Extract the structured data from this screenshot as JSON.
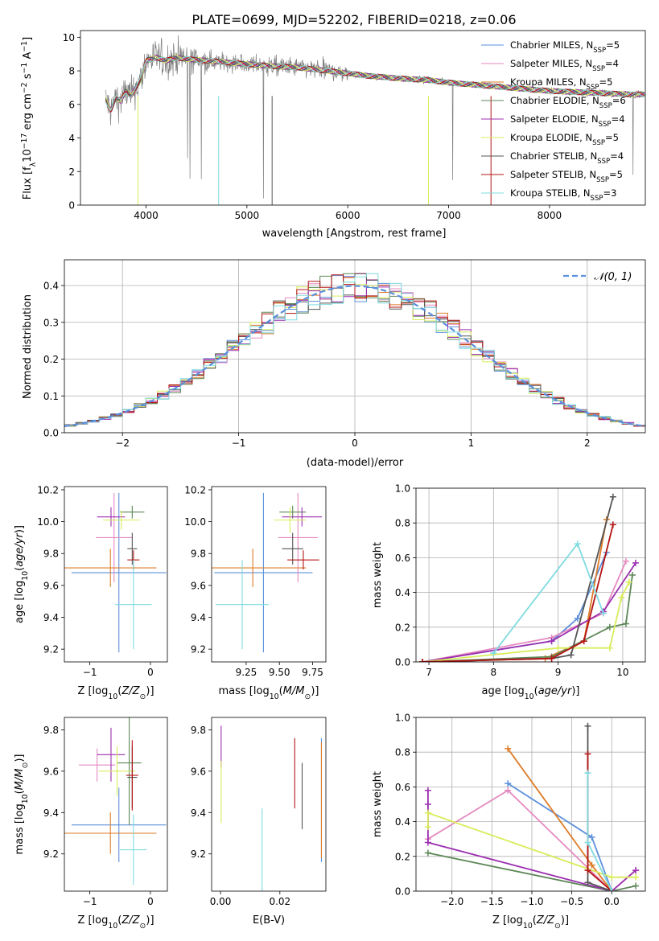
{
  "figure_title": "PLATE=0699, MJD=52202, FIBERID=0218, z=0.06",
  "colors": {
    "Chabrier MILES": "#5b8fdb",
    "Salpeter MILES": "#e58ac0",
    "Kroupa MILES": "#dd7b27",
    "Chabrier ELODIE": "#5d8757",
    "Salpeter ELODIE": "#9c2fb0",
    "Kroupa ELODIE": "#d9ec5a",
    "Chabrier STELIB": "#555555",
    "Salpeter STELIB": "#b51414",
    "Kroupa STELIB": "#7fdbe0",
    "data": "#808080"
  },
  "chart_data": [
    {
      "id": "spectrum",
      "type": "line",
      "title": "PLATE=0699, MJD=52202, FIBERID=0218, z=0.06",
      "xlabel": "wavelength [Angstrom, rest frame]",
      "ylabel": "Flux [fλ 10⁻¹⁷ erg cm⁻² s⁻¹ A⁻¹]",
      "xlim": [
        3350,
        8950
      ],
      "ylim": [
        0,
        10.4
      ],
      "xticks": [
        4000,
        5000,
        6000,
        7000,
        8000
      ],
      "yticks": [
        0,
        2,
        4,
        6,
        8,
        10
      ],
      "legend_position": "top-right",
      "continuum": {
        "x": [
          3600,
          3650,
          3700,
          3750,
          3800,
          3850,
          3900,
          3950,
          4000,
          4100,
          4200,
          4300,
          4400,
          4600,
          4800,
          5000,
          5200,
          5500,
          5800,
          6000,
          6200,
          6500,
          6800,
          7000,
          7200,
          7400,
          7600,
          7800,
          8000,
          8200,
          8400,
          8600,
          8800
        ],
        "y": [
          6.3,
          5.6,
          6.4,
          6.2,
          6.8,
          6.5,
          7.0,
          7.5,
          8.6,
          8.8,
          8.6,
          8.8,
          8.7,
          8.6,
          8.5,
          8.4,
          8.3,
          8.2,
          8.0,
          7.85,
          7.7,
          7.55,
          7.45,
          7.3,
          7.2,
          7.1,
          7.0,
          6.9,
          6.8,
          6.75,
          6.7,
          6.65,
          6.6
        ]
      },
      "series": [
        {
          "name": "Chabrier MILES, N_SSP=5",
          "label_base": "Chabrier MILES, N",
          "label_sub": "SSP",
          "label_tail": "=5"
        },
        {
          "name": "Salpeter MILES, N_SSP=4",
          "label_base": "Salpeter MILES, N",
          "label_sub": "SSP",
          "label_tail": "=4"
        },
        {
          "name": "Kroupa MILES, N_SSP=5",
          "label_base": "Kroupa MILES, N",
          "label_sub": "SSP",
          "label_tail": "=5"
        },
        {
          "name": "Chabrier ELODIE, N_SSP=6",
          "label_base": "Chabrier ELODIE, N",
          "label_sub": "SSP",
          "label_tail": "=6"
        },
        {
          "name": "Salpeter ELODIE, N_SSP=4",
          "label_base": "Salpeter ELODIE, N",
          "label_sub": "SSP",
          "label_tail": "=4"
        },
        {
          "name": "Kroupa ELODIE, N_SSP=5",
          "label_base": "Kroupa ELODIE, N",
          "label_sub": "SSP",
          "label_tail": "=5"
        },
        {
          "name": "Chabrier STELIB, N_SSP=4",
          "label_base": "Chabrier STELIB, N",
          "label_sub": "SSP",
          "label_tail": "=4"
        },
        {
          "name": "Salpeter STELIB, N_SSP=5",
          "label_base": "Salpeter STELIB, N",
          "label_sub": "SSP",
          "label_tail": "=5"
        },
        {
          "name": "Kroupa STELIB, N_SSP=3",
          "label_base": "Kroupa STELIB, N",
          "label_sub": "SSP",
          "label_tail": "=3"
        }
      ]
    },
    {
      "id": "residuals",
      "type": "histogram",
      "xlabel": "(data-model)/error",
      "ylabel": "Normed distribution",
      "xlim": [
        -2.5,
        2.5
      ],
      "ylim": [
        0,
        0.47
      ],
      "xticks": [
        -2,
        -1,
        0,
        1,
        2
      ],
      "yticks": [
        0.0,
        0.1,
        0.2,
        0.3,
        0.4
      ],
      "grid": true,
      "legend_position": "top-right",
      "reference_curve": {
        "name": "N(0,1)",
        "label": "𝒩(0, 1)",
        "mean": 0,
        "sigma": 1
      },
      "bin_width": 0.1,
      "bins_from": -2.5,
      "bins_to": 2.5
    },
    {
      "id": "age-vs-Z",
      "type": "errorbar",
      "xlabel": "Z [log10(Z/Z⊙)]",
      "ylabel": "age [log10(age/yr)]",
      "xlim": [
        -1.42,
        0.28
      ],
      "ylim": [
        9.12,
        10.22
      ],
      "xticks": [
        -1,
        0
      ],
      "yticks": [
        9.2,
        9.4,
        9.6,
        9.8,
        10.0,
        10.2
      ],
      "points": [
        {
          "series": "Chabrier MILES",
          "x": -0.52,
          "xerr": 0.78,
          "y": 9.68,
          "yerr": 0.5
        },
        {
          "series": "Salpeter MILES",
          "x": -0.6,
          "xerr": 0.3,
          "y": 9.9,
          "yerr": 0.28
        },
        {
          "series": "Kroupa MILES",
          "x": -0.66,
          "xerr": 0.76,
          "y": 9.71,
          "yerr": 0.12
        },
        {
          "series": "Chabrier ELODIE",
          "x": -0.3,
          "xerr": 0.2,
          "y": 10.06,
          "yerr": 0.04
        },
        {
          "series": "Salpeter ELODIE",
          "x": -0.65,
          "xerr": 0.23,
          "y": 10.03,
          "yerr": 0.06
        },
        {
          "series": "Kroupa ELODIE",
          "x": -0.48,
          "xerr": 0.3,
          "y": 10.01,
          "yerr": 0.06
        },
        {
          "series": "Chabrier STELIB",
          "x": -0.3,
          "xerr": 0.08,
          "y": 9.83,
          "yerr": 0.1
        },
        {
          "series": "Salpeter STELIB",
          "x": -0.28,
          "xerr": 0.1,
          "y": 9.76,
          "yerr": 0.06
        },
        {
          "series": "Kroupa STELIB",
          "x": -0.28,
          "xerr": 0.3,
          "y": 9.48,
          "yerr": 0.28
        }
      ]
    },
    {
      "id": "age-vs-mass",
      "type": "errorbar",
      "xlabel": "mass [log10(M/M⊙)]",
      "ylabel": "",
      "xlim": [
        8.99,
        9.85
      ],
      "ylim": [
        9.12,
        10.22
      ],
      "xticks": [
        9.25,
        9.5,
        9.75
      ],
      "yticks": [
        9.2,
        9.4,
        9.6,
        9.8,
        10.0,
        10.2
      ],
      "points": [
        {
          "series": "Chabrier MILES",
          "x": 9.38,
          "xerr": 0.37,
          "y": 9.68,
          "yerr": 0.5
        },
        {
          "series": "Salpeter MILES",
          "x": 9.64,
          "xerr": 0.15,
          "y": 9.9,
          "yerr": 0.28
        },
        {
          "series": "Kroupa MILES",
          "x": 9.3,
          "xerr": 0.4,
          "y": 9.71,
          "yerr": 0.12
        },
        {
          "series": "Chabrier ELODIE",
          "x": 9.6,
          "xerr": 0.1,
          "y": 10.06,
          "yerr": 0.04
        },
        {
          "series": "Salpeter ELODIE",
          "x": 9.67,
          "xerr": 0.15,
          "y": 10.03,
          "yerr": 0.06
        },
        {
          "series": "Kroupa ELODIE",
          "x": 9.58,
          "xerr": 0.12,
          "y": 10.01,
          "yerr": 0.08
        },
        {
          "series": "Chabrier STELIB",
          "x": 9.6,
          "xerr": 0.08,
          "y": 9.83,
          "yerr": 0.1
        },
        {
          "series": "Salpeter STELIB",
          "x": 9.68,
          "xerr": 0.12,
          "y": 9.76,
          "yerr": 0.06
        },
        {
          "series": "Kroupa STELIB",
          "x": 9.22,
          "xerr": 0.2,
          "y": 9.48,
          "yerr": 0.28
        }
      ]
    },
    {
      "id": "weight-vs-age",
      "type": "line",
      "xlabel": "age [log10(age/yr)]",
      "ylabel": "mass weight",
      "xlim": [
        6.8,
        10.35
      ],
      "ylim": [
        0,
        1.0
      ],
      "xticks": [
        7,
        8,
        9,
        10
      ],
      "yticks": [
        0.0,
        0.2,
        0.4,
        0.6,
        0.8,
        1.0
      ],
      "grid": true,
      "series": [
        {
          "name": "Chabrier MILES",
          "x": [
            6.9,
            8.9,
            9.3,
            9.75
          ],
          "y": [
            0.0,
            0.12,
            0.25,
            0.63
          ]
        },
        {
          "name": "Salpeter MILES",
          "x": [
            6.9,
            8.9,
            9.7,
            10.05
          ],
          "y": [
            0.0,
            0.14,
            0.28,
            0.58
          ]
        },
        {
          "name": "Kroupa MILES",
          "x": [
            6.9,
            8.8,
            9.4,
            9.75
          ],
          "y": [
            0.0,
            0.02,
            0.12,
            0.82
          ]
        },
        {
          "name": "Chabrier ELODIE",
          "x": [
            6.9,
            8.9,
            9.8,
            10.05,
            10.15
          ],
          "y": [
            0.0,
            0.03,
            0.2,
            0.22,
            0.5
          ]
        },
        {
          "name": "Salpeter ELODIE",
          "x": [
            6.9,
            8.9,
            9.7,
            10.2
          ],
          "y": [
            0.0,
            0.12,
            0.29,
            0.57
          ]
        },
        {
          "name": "Kroupa ELODIE",
          "x": [
            6.9,
            9.0,
            9.8,
            9.98,
            10.1
          ],
          "y": [
            0.0,
            0.08,
            0.08,
            0.37,
            0.46
          ]
        },
        {
          "name": "Chabrier STELIB",
          "x": [
            6.9,
            8.9,
            9.2,
            9.85
          ],
          "y": [
            0.0,
            0.02,
            0.04,
            0.95
          ]
        },
        {
          "name": "Salpeter STELIB",
          "x": [
            6.9,
            8.9,
            9.4,
            9.85
          ],
          "y": [
            0.0,
            0.02,
            0.12,
            0.79
          ]
        },
        {
          "name": "Kroupa STELIB",
          "x": [
            8.0,
            9.3,
            9.7
          ],
          "y": [
            0.05,
            0.68,
            0.28
          ]
        }
      ]
    },
    {
      "id": "mass-vs-Z",
      "type": "errorbar",
      "xlabel": "Z [log10(Z/Z⊙)]",
      "ylabel": "mass [log10(M/M⊙)]",
      "xlim": [
        -1.42,
        0.28
      ],
      "ylim": [
        9.02,
        9.86
      ],
      "xticks": [
        -1,
        0
      ],
      "yticks": [
        9.2,
        9.4,
        9.6,
        9.8
      ],
      "points": [
        {
          "series": "Chabrier MILES",
          "x": -0.52,
          "xerr": 0.78,
          "y": 9.34,
          "yerr": 0.18
        },
        {
          "series": "Salpeter MILES",
          "x": -0.88,
          "xerr": 0.3,
          "y": 9.63,
          "yerr": 0.08
        },
        {
          "series": "Kroupa MILES",
          "x": -0.66,
          "xerr": 0.76,
          "y": 9.3,
          "yerr": 0.1
        },
        {
          "series": "Chabrier ELODIE",
          "x": -0.35,
          "xerr": 0.2,
          "y": 9.64,
          "yerr": 0.3
        },
        {
          "series": "Salpeter ELODIE",
          "x": -0.65,
          "xerr": 0.23,
          "y": 9.68,
          "yerr": 0.13
        },
        {
          "series": "Kroupa ELODIE",
          "x": -0.55,
          "xerr": 0.3,
          "y": 9.6,
          "yerr": 0.12
        },
        {
          "series": "Chabrier STELIB",
          "x": -0.3,
          "xerr": 0.08,
          "y": 9.57,
          "yerr": 0.15
        },
        {
          "series": "Salpeter STELIB",
          "x": -0.3,
          "xerr": 0.1,
          "y": 9.58,
          "yerr": 0.17
        },
        {
          "series": "Kroupa STELIB",
          "x": -0.28,
          "xerr": 0.22,
          "y": 9.22,
          "yerr": 0.17
        }
      ]
    },
    {
      "id": "mass-vs-ebv",
      "type": "errorbar",
      "xlabel": "E(B-V)",
      "ylabel": "",
      "xlim": [
        -0.003,
        0.0355
      ],
      "ylim": [
        9.02,
        9.86
      ],
      "xticks": [
        0.0,
        0.02
      ],
      "yticks": [
        9.2,
        9.4,
        9.6,
        9.8
      ],
      "points": [
        {
          "series": "Chabrier MILES",
          "x": 0.034,
          "xerr": 0,
          "y": 9.46,
          "yerr": 0.3
        },
        {
          "series": "Kroupa MILES",
          "x": 0.034,
          "xerr": 0,
          "y": 9.46,
          "yerr": 0.28
        },
        {
          "series": "Salpeter ELODIE",
          "x": 0.0002,
          "xerr": 0,
          "y": 9.72,
          "yerr": 0.1
        },
        {
          "series": "Kroupa ELODIE",
          "x": 0.0002,
          "xerr": 0,
          "y": 9.5,
          "yerr": 0.15
        },
        {
          "series": "Chabrier STELIB",
          "x": 0.0275,
          "xerr": 0,
          "y": 9.48,
          "yerr": 0.16
        },
        {
          "series": "Salpeter STELIB",
          "x": 0.025,
          "xerr": 0,
          "y": 9.59,
          "yerr": 0.17
        },
        {
          "series": "Kroupa STELIB",
          "x": 0.014,
          "xerr": 0,
          "y": 9.22,
          "yerr": 0.2
        }
      ]
    },
    {
      "id": "weight-vs-Z",
      "type": "line",
      "xlabel": "Z [log10(Z/Z⊙)]",
      "ylabel": "mass weight",
      "xlim": [
        -2.45,
        0.42
      ],
      "ylim": [
        0,
        1.0
      ],
      "xticks": [
        -2.0,
        -1.5,
        -1.0,
        -0.5,
        0.0
      ],
      "yticks": [
        0.0,
        0.2,
        0.4,
        0.6,
        0.8,
        1.0
      ],
      "grid": true,
      "series": [
        {
          "name": "Chabrier MILES",
          "x": [
            -1.3,
            -0.25,
            0.0
          ],
          "y": [
            0.62,
            0.31,
            0.0
          ]
        },
        {
          "name": "Salpeter MILES",
          "x": [
            -2.3,
            -1.3,
            0.0,
            0.3
          ],
          "y": [
            0.3,
            0.58,
            0.0,
            0.12
          ]
        },
        {
          "name": "Kroupa MILES",
          "x": [
            -1.3,
            -0.25,
            0.0
          ],
          "y": [
            0.82,
            0.15,
            0.0
          ]
        },
        {
          "name": "Chabrier ELODIE",
          "x": [
            -2.3,
            0.0,
            0.3
          ],
          "y": [
            0.22,
            0.0,
            0.03
          ]
        },
        {
          "name": "Salpeter ELODIE",
          "x": [
            -2.3,
            -2.3,
            -2.3,
            0.0,
            0.3
          ],
          "y": [
            0.58,
            0.5,
            0.28,
            0.0,
            0.12
          ]
        },
        {
          "name": "Kroupa ELODIE",
          "x": [
            -2.3,
            -2.3,
            0.0,
            0.3
          ],
          "y": [
            0.37,
            0.45,
            0.08,
            0.08
          ]
        },
        {
          "name": "Chabrier STELIB",
          "x": [
            -0.3,
            -0.3,
            0.0
          ],
          "y": [
            0.95,
            0.05,
            0.0
          ]
        },
        {
          "name": "Salpeter STELIB",
          "x": [
            -0.3,
            -0.3,
            0.0
          ],
          "y": [
            0.79,
            0.12,
            0.0
          ]
        },
        {
          "name": "Kroupa STELIB",
          "x": [
            -0.3,
            -0.3,
            0.0
          ],
          "y": [
            0.68,
            0.28,
            0.0
          ]
        }
      ]
    }
  ]
}
